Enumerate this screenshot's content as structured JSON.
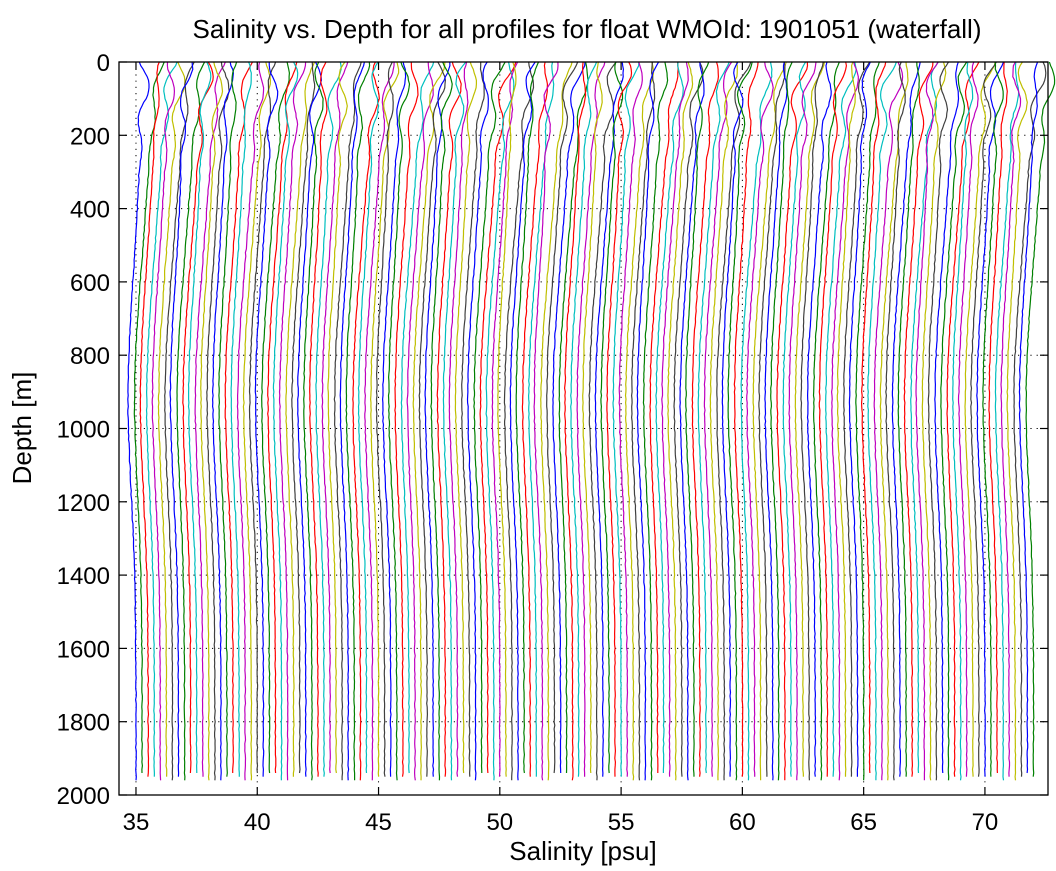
{
  "chart_data": {
    "type": "line",
    "title": "Salinity vs. Depth for all profiles for float WMOId: 1901051 (waterfall)",
    "xlabel": "Salinity [psu]",
    "ylabel": "Depth [m]",
    "xlim": [
      34.3,
      72.6
    ],
    "ylim": [
      0,
      2000
    ],
    "y_reversed": true,
    "x_ticks": [
      35,
      40,
      45,
      50,
      55,
      60,
      65,
      70
    ],
    "y_ticks": [
      0,
      200,
      400,
      600,
      800,
      1000,
      1200,
      1400,
      1600,
      1800,
      2000
    ],
    "grid": "dotted",
    "legend": "none",
    "waterfall": {
      "profile_count": 149,
      "first_deep_salinity": 35.0,
      "offset_per_profile": 0.25,
      "last_profile_surface_salinity": 72.2,
      "max_depth": 1970
    },
    "series_colors": [
      "#0000ff",
      "#008000",
      "#ff0000",
      "#00bfbf",
      "#bf00bf",
      "#bfbf00",
      "#404040"
    ]
  }
}
